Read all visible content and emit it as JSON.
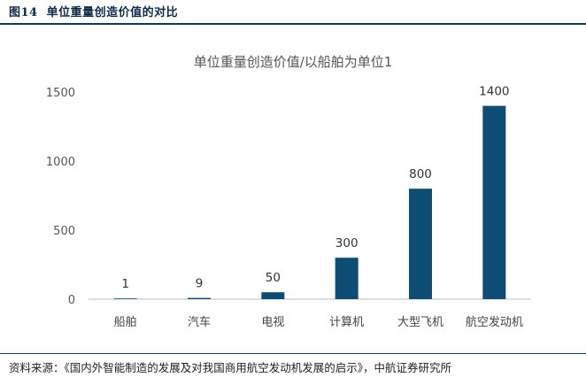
{
  "figure": {
    "label": "图14",
    "title": "单位重量创造价值的对比"
  },
  "source": "资料来源：《国内外智能制造的发展及对我国商用航空发动机发展的启示》，中航证券研究所",
  "chart_data": {
    "type": "bar",
    "title": "单位重量创造价值/以船舶为单位1",
    "categories": [
      "船舶",
      "汽车",
      "电视",
      "计算机",
      "大型飞机",
      "航空发动机"
    ],
    "values": [
      1,
      9,
      50,
      300,
      800,
      1400
    ],
    "data_labels": [
      "1",
      "9",
      "50",
      "300",
      "800",
      "1400"
    ],
    "yticks": [
      0,
      500,
      1000,
      1500
    ],
    "ylim": [
      0,
      1500
    ],
    "grid": false,
    "legend": "none",
    "bar_color": "#0d4c74"
  }
}
